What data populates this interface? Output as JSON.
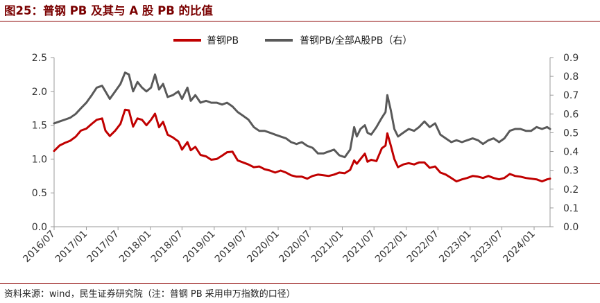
{
  "header": {
    "title": "图25：普钢 PB 及其与 A 股 PB 的比值"
  },
  "footer": {
    "source": "资料来源：wind，民生证券研究院（注：普钢 PB 采用申万指数的口径）"
  },
  "colors": {
    "title": "#7a0000",
    "rule": "#8b0000",
    "series_pb": "#c00000",
    "series_ratio": "#595959"
  },
  "chart_data": {
    "type": "line",
    "title": "",
    "xlabel": "",
    "ylabel": "",
    "y2label": "",
    "legend_position": "top",
    "grid": false,
    "xlim": [
      "2016-07",
      "2024-04"
    ],
    "ylim": [
      0,
      2.5
    ],
    "y2lim": [
      0,
      0.9
    ],
    "x_ticks": [
      "2016/07",
      "2017/01",
      "2017/07",
      "2018/01",
      "2018/07",
      "2019/01",
      "2019/07",
      "2020/01",
      "2020/07",
      "2021/01",
      "2021/07",
      "2022/01",
      "2022/07",
      "2023/01",
      "2023/07",
      "2024/01"
    ],
    "y_ticks": [
      "0.0",
      "0.5",
      "1.0",
      "1.5",
      "2.0",
      "2.5"
    ],
    "y2_ticks": [
      "0.0",
      "0.1",
      "0.2",
      "0.3",
      "0.4",
      "0.5",
      "0.6",
      "0.7",
      "0.8",
      "0.9"
    ],
    "series": [
      {
        "name": "普钢PB",
        "axis": "left",
        "color": "#c00000",
        "points": [
          [
            "2016-07-01",
            1.12
          ],
          [
            "2016-08-01",
            1.2
          ],
          [
            "2016-09-01",
            1.24
          ],
          [
            "2016-10-01",
            1.27
          ],
          [
            "2016-11-01",
            1.33
          ],
          [
            "2016-12-01",
            1.42
          ],
          [
            "2017-01-01",
            1.45
          ],
          [
            "2017-02-01",
            1.52
          ],
          [
            "2017-03-01",
            1.58
          ],
          [
            "2017-04-01",
            1.6
          ],
          [
            "2017-04-20",
            1.42
          ],
          [
            "2017-05-15",
            1.34
          ],
          [
            "2017-06-15",
            1.42
          ],
          [
            "2017-07-15",
            1.52
          ],
          [
            "2017-08-10",
            1.73
          ],
          [
            "2017-09-01",
            1.72
          ],
          [
            "2017-09-25",
            1.48
          ],
          [
            "2017-10-20",
            1.6
          ],
          [
            "2017-11-15",
            1.58
          ],
          [
            "2017-12-10",
            1.5
          ],
          [
            "2018-01-05",
            1.58
          ],
          [
            "2018-01-28",
            1.67
          ],
          [
            "2018-02-20",
            1.47
          ],
          [
            "2018-03-15",
            1.55
          ],
          [
            "2018-04-10",
            1.36
          ],
          [
            "2018-05-10",
            1.32
          ],
          [
            "2018-06-10",
            1.26
          ],
          [
            "2018-07-01",
            1.14
          ],
          [
            "2018-08-01",
            1.25
          ],
          [
            "2018-08-20",
            1.13
          ],
          [
            "2018-09-15",
            1.18
          ],
          [
            "2018-10-15",
            1.06
          ],
          [
            "2018-11-15",
            1.04
          ],
          [
            "2018-12-15",
            0.99
          ],
          [
            "2019-01-15",
            1.0
          ],
          [
            "2019-02-15",
            1.05
          ],
          [
            "2019-03-15",
            1.1
          ],
          [
            "2019-04-15",
            1.11
          ],
          [
            "2019-05-15",
            0.98
          ],
          [
            "2019-06-15",
            0.95
          ],
          [
            "2019-07-15",
            0.92
          ],
          [
            "2019-08-15",
            0.88
          ],
          [
            "2019-09-15",
            0.89
          ],
          [
            "2019-10-15",
            0.85
          ],
          [
            "2019-11-15",
            0.83
          ],
          [
            "2019-12-15",
            0.8
          ],
          [
            "2020-01-15",
            0.83
          ],
          [
            "2020-02-15",
            0.8
          ],
          [
            "2020-03-15",
            0.76
          ],
          [
            "2020-04-15",
            0.74
          ],
          [
            "2020-05-15",
            0.74
          ],
          [
            "2020-06-15",
            0.71
          ],
          [
            "2020-07-15",
            0.75
          ],
          [
            "2020-08-15",
            0.77
          ],
          [
            "2020-09-15",
            0.76
          ],
          [
            "2020-10-15",
            0.75
          ],
          [
            "2020-11-15",
            0.77
          ],
          [
            "2020-12-15",
            0.8
          ],
          [
            "2021-01-15",
            0.79
          ],
          [
            "2021-02-15",
            0.84
          ],
          [
            "2021-03-10",
            0.98
          ],
          [
            "2021-03-25",
            0.93
          ],
          [
            "2021-04-15",
            1.0
          ],
          [
            "2021-05-10",
            1.08
          ],
          [
            "2021-05-25",
            0.96
          ],
          [
            "2021-06-15",
            0.99
          ],
          [
            "2021-07-15",
            0.97
          ],
          [
            "2021-08-15",
            1.16
          ],
          [
            "2021-09-05",
            1.2
          ],
          [
            "2021-09-15",
            1.38
          ],
          [
            "2021-10-05",
            1.2
          ],
          [
            "2021-10-25",
            1.0
          ],
          [
            "2021-11-15",
            0.88
          ],
          [
            "2021-12-15",
            0.92
          ],
          [
            "2022-01-15",
            0.94
          ],
          [
            "2022-02-15",
            0.92
          ],
          [
            "2022-03-15",
            0.95
          ],
          [
            "2022-04-15",
            0.95
          ],
          [
            "2022-05-15",
            0.87
          ],
          [
            "2022-06-15",
            0.89
          ],
          [
            "2022-07-15",
            0.8
          ],
          [
            "2022-08-15",
            0.77
          ],
          [
            "2022-09-15",
            0.72
          ],
          [
            "2022-10-15",
            0.67
          ],
          [
            "2022-11-15",
            0.7
          ],
          [
            "2022-12-15",
            0.72
          ],
          [
            "2023-01-15",
            0.75
          ],
          [
            "2023-02-15",
            0.74
          ],
          [
            "2023-03-15",
            0.72
          ],
          [
            "2023-04-15",
            0.75
          ],
          [
            "2023-05-15",
            0.72
          ],
          [
            "2023-06-15",
            0.7
          ],
          [
            "2023-07-15",
            0.72
          ],
          [
            "2023-08-15",
            0.78
          ],
          [
            "2023-09-15",
            0.75
          ],
          [
            "2023-10-15",
            0.74
          ],
          [
            "2023-11-15",
            0.72
          ],
          [
            "2023-12-15",
            0.71
          ],
          [
            "2024-01-15",
            0.7
          ],
          [
            "2024-02-15",
            0.67
          ],
          [
            "2024-03-15",
            0.7
          ],
          [
            "2024-04-01",
            0.71
          ]
        ]
      },
      {
        "name": "普钢PB/全部A股PB（右）",
        "axis": "right",
        "color": "#595959",
        "points": [
          [
            "2016-07-01",
            0.55
          ],
          [
            "2016-08-01",
            0.56
          ],
          [
            "2016-09-01",
            0.57
          ],
          [
            "2016-10-01",
            0.58
          ],
          [
            "2016-11-01",
            0.6
          ],
          [
            "2016-12-01",
            0.63
          ],
          [
            "2017-01-01",
            0.66
          ],
          [
            "2017-02-01",
            0.7
          ],
          [
            "2017-03-01",
            0.74
          ],
          [
            "2017-04-01",
            0.75
          ],
          [
            "2017-04-20",
            0.72
          ],
          [
            "2017-05-15",
            0.68
          ],
          [
            "2017-06-15",
            0.72
          ],
          [
            "2017-07-15",
            0.76
          ],
          [
            "2017-08-10",
            0.82
          ],
          [
            "2017-09-01",
            0.81
          ],
          [
            "2017-09-25",
            0.72
          ],
          [
            "2017-10-20",
            0.77
          ],
          [
            "2017-11-15",
            0.74
          ],
          [
            "2017-12-10",
            0.72
          ],
          [
            "2018-01-05",
            0.74
          ],
          [
            "2018-01-28",
            0.81
          ],
          [
            "2018-02-20",
            0.73
          ],
          [
            "2018-03-15",
            0.76
          ],
          [
            "2018-04-10",
            0.69
          ],
          [
            "2018-05-10",
            0.7
          ],
          [
            "2018-06-10",
            0.72
          ],
          [
            "2018-07-01",
            0.68
          ],
          [
            "2018-08-01",
            0.74
          ],
          [
            "2018-08-20",
            0.67
          ],
          [
            "2018-09-15",
            0.7
          ],
          [
            "2018-10-15",
            0.66
          ],
          [
            "2018-11-15",
            0.67
          ],
          [
            "2018-12-15",
            0.66
          ],
          [
            "2019-01-15",
            0.66
          ],
          [
            "2019-02-15",
            0.65
          ],
          [
            "2019-03-15",
            0.66
          ],
          [
            "2019-04-15",
            0.64
          ],
          [
            "2019-05-15",
            0.61
          ],
          [
            "2019-06-15",
            0.59
          ],
          [
            "2019-07-15",
            0.57
          ],
          [
            "2019-08-15",
            0.53
          ],
          [
            "2019-09-15",
            0.51
          ],
          [
            "2019-10-15",
            0.51
          ],
          [
            "2019-11-15",
            0.5
          ],
          [
            "2019-12-15",
            0.49
          ],
          [
            "2020-01-15",
            0.48
          ],
          [
            "2020-02-15",
            0.47
          ],
          [
            "2020-03-15",
            0.45
          ],
          [
            "2020-04-15",
            0.44
          ],
          [
            "2020-05-15",
            0.45
          ],
          [
            "2020-06-15",
            0.43
          ],
          [
            "2020-07-15",
            0.42
          ],
          [
            "2020-08-15",
            0.39
          ],
          [
            "2020-09-15",
            0.39
          ],
          [
            "2020-10-15",
            0.4
          ],
          [
            "2020-11-15",
            0.41
          ],
          [
            "2020-12-15",
            0.38
          ],
          [
            "2021-01-15",
            0.37
          ],
          [
            "2021-02-15",
            0.41
          ],
          [
            "2021-03-10",
            0.53
          ],
          [
            "2021-03-25",
            0.48
          ],
          [
            "2021-04-15",
            0.52
          ],
          [
            "2021-05-10",
            0.54
          ],
          [
            "2021-05-25",
            0.5
          ],
          [
            "2021-06-15",
            0.49
          ],
          [
            "2021-07-15",
            0.53
          ],
          [
            "2021-08-15",
            0.58
          ],
          [
            "2021-09-05",
            0.61
          ],
          [
            "2021-09-15",
            0.7
          ],
          [
            "2021-10-05",
            0.62
          ],
          [
            "2021-10-25",
            0.52
          ],
          [
            "2021-11-15",
            0.48
          ],
          [
            "2021-12-15",
            0.5
          ],
          [
            "2022-01-15",
            0.52
          ],
          [
            "2022-02-15",
            0.51
          ],
          [
            "2022-03-15",
            0.53
          ],
          [
            "2022-04-15",
            0.56
          ],
          [
            "2022-05-15",
            0.53
          ],
          [
            "2022-06-15",
            0.55
          ],
          [
            "2022-07-15",
            0.49
          ],
          [
            "2022-08-15",
            0.47
          ],
          [
            "2022-09-15",
            0.45
          ],
          [
            "2022-10-15",
            0.46
          ],
          [
            "2022-11-15",
            0.45
          ],
          [
            "2022-12-15",
            0.46
          ],
          [
            "2023-01-15",
            0.47
          ],
          [
            "2023-02-15",
            0.46
          ],
          [
            "2023-03-15",
            0.44
          ],
          [
            "2023-04-15",
            0.46
          ],
          [
            "2023-05-15",
            0.47
          ],
          [
            "2023-06-15",
            0.45
          ],
          [
            "2023-07-15",
            0.47
          ],
          [
            "2023-08-15",
            0.51
          ],
          [
            "2023-09-15",
            0.52
          ],
          [
            "2023-10-15",
            0.52
          ],
          [
            "2023-11-15",
            0.51
          ],
          [
            "2023-12-15",
            0.51
          ],
          [
            "2024-01-15",
            0.53
          ],
          [
            "2024-02-15",
            0.52
          ],
          [
            "2024-03-15",
            0.53
          ],
          [
            "2024-04-01",
            0.52
          ]
        ]
      }
    ]
  }
}
